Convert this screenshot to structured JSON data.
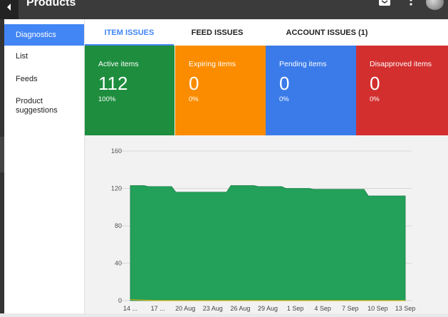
{
  "header": {
    "title": "Products"
  },
  "sidebar": {
    "items": [
      "Diagnostics",
      "List",
      "Feeds",
      "Product suggestions"
    ]
  },
  "tabs": [
    "ITEM ISSUES",
    "FEED ISSUES",
    "ACCOUNT ISSUES (1)"
  ],
  "cards": [
    {
      "label": "Active items",
      "value": "112",
      "percent": "100%",
      "color": "#1e8e3e"
    },
    {
      "label": "Expiring items",
      "value": "0",
      "percent": "0%",
      "color": "#fb8c00"
    },
    {
      "label": "Pending items",
      "value": "0",
      "percent": "0%",
      "color": "#3b7be9"
    },
    {
      "label": "Disapproved items",
      "value": "0",
      "percent": "0%",
      "color": "#d32f2f"
    }
  ],
  "colors": {
    "active_tab": "#4285f4",
    "area_fill": "#23a05a",
    "topbar": "#3b3b3b"
  },
  "chart_data": {
    "type": "area",
    "x": [
      "14 ...",
      "17 ...",
      "20 Aug",
      "23 Aug",
      "26 Aug",
      "29 Aug",
      "1 Sep",
      "4 Sep",
      "7 Sep",
      "10 Sep",
      "13 Sep"
    ],
    "series": [
      {
        "values": [
          123,
          122,
          116,
          116,
          123,
          122,
          120,
          119,
          119,
          112,
          112
        ]
      },
      {
        "values": [
          1,
          0,
          0,
          0,
          0,
          0,
          0,
          0,
          0,
          0,
          0
        ]
      }
    ],
    "yticks": [
      0,
      40,
      80,
      120,
      160
    ],
    "ylim": [
      0,
      160
    ],
    "grid": true
  }
}
